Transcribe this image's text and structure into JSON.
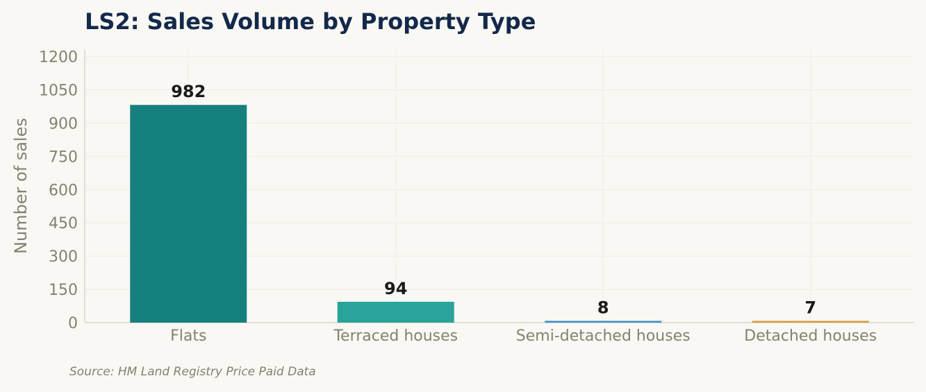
{
  "chart_data": {
    "type": "bar",
    "title": "LS2: Sales Volume by Property Type",
    "xlabel": "",
    "ylabel": "Number of sales",
    "categories": [
      "Flats",
      "Terraced houses",
      "Semi-detached houses",
      "Detached houses"
    ],
    "values": [
      982,
      94,
      8,
      7
    ],
    "data_labels": [
      "982",
      "94",
      "8",
      "7"
    ],
    "colors": [
      "#16807e",
      "#2aa39a",
      "#3a93c8",
      "#d59b3c"
    ],
    "ylim": [
      0,
      1230
    ],
    "yticks": [
      0,
      150,
      300,
      450,
      600,
      750,
      900,
      1050,
      1200
    ],
    "grid": true,
    "legend": "none"
  },
  "source": "Source: HM Land Registry Price Paid Data",
  "colors": {
    "title": "#13294b",
    "axis_text": "#85816f",
    "data_label": "#1a1a1a",
    "grid": "#eeece6",
    "axis_line": "#d8d4c4",
    "background": "#f9f8f4"
  }
}
